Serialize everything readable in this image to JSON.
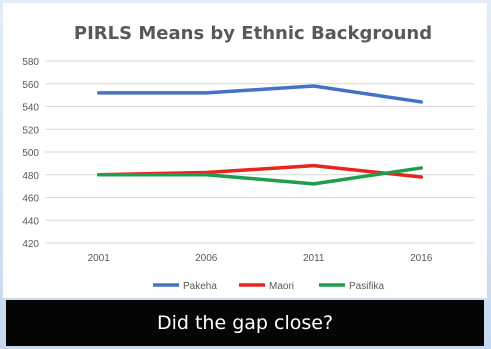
{
  "chart_data": {
    "type": "line",
    "title": "PIRLS Means by Ethnic Background",
    "xlabel": "",
    "ylabel": "",
    "categories": [
      "2001",
      "2006",
      "2011",
      "2016"
    ],
    "ylim": [
      420,
      580
    ],
    "yticks": [
      420,
      440,
      460,
      480,
      500,
      520,
      540,
      560,
      580
    ],
    "grid": true,
    "legend_position": "bottom",
    "series": [
      {
        "name": "Pakeha",
        "color": "#4472c4",
        "values": [
          552,
          552,
          558,
          544
        ]
      },
      {
        "name": "Maori",
        "color": "#e8251f",
        "values": [
          480,
          482,
          488,
          478
        ]
      },
      {
        "name": "Pasifika",
        "color": "#1e9e4c",
        "values": [
          480,
          480,
          472,
          486
        ]
      }
    ]
  },
  "caption": "Did the gap close?"
}
